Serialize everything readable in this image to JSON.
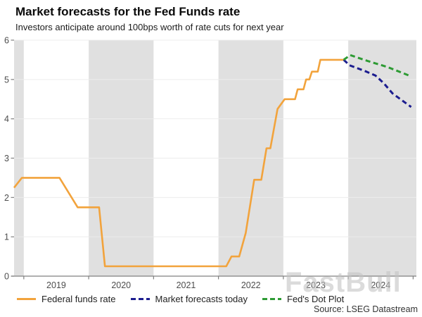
{
  "header": {
    "title": "Market forecasts for the Fed Funds rate",
    "subtitle": "Investors anticipate around 100bps worth of rate cuts for next year"
  },
  "watermark": {
    "text": "FastBull"
  },
  "colors": {
    "band": "#e0e0e0",
    "gridline": "#ededed",
    "axis": "#808080",
    "tick_label": "#4d4d4d",
    "orange": "#F2A33C",
    "navy": "#1C1D8F",
    "green": "#2E9B34"
  },
  "chart_data": {
    "type": "line",
    "title": "Market forecasts for the Fed Funds rate",
    "subtitle": "Investors anticipate around 100bps worth of rate cuts for next year",
    "source": "Source: LSEG Datastream",
    "xlabel": "",
    "ylabel": "",
    "x_axis": {
      "range": [
        2018.85,
        2025.05
      ],
      "tick_labels": [
        "2019",
        "2020",
        "2021",
        "2022",
        "2023",
        "2024"
      ],
      "tick_label_positions": [
        2019.5,
        2020.5,
        2021.5,
        2022.5,
        2023.5,
        2024.5
      ],
      "boundary_ticks": [
        2019,
        2020,
        2021,
        2022,
        2023,
        2024,
        2025
      ]
    },
    "y_axis": {
      "range": [
        0,
        6
      ],
      "ticks": [
        0,
        1,
        2,
        3,
        4,
        5,
        6
      ]
    },
    "shaded_year_bands": [
      [
        2018.85,
        2019
      ],
      [
        2020,
        2021
      ],
      [
        2022,
        2023
      ],
      [
        2024,
        2025.05
      ]
    ],
    "grid": true,
    "legend_position": "bottom",
    "series": [
      {
        "name": "Federal funds rate",
        "style": "solid",
        "color": "#F2A33C",
        "points": [
          [
            2018.85,
            2.25
          ],
          [
            2018.97,
            2.5
          ],
          [
            2019.55,
            2.5
          ],
          [
            2019.83,
            1.75
          ],
          [
            2020.16,
            1.75
          ],
          [
            2020.25,
            0.25
          ],
          [
            2022.12,
            0.25
          ],
          [
            2022.2,
            0.5
          ],
          [
            2022.32,
            0.5
          ],
          [
            2022.42,
            1.1
          ],
          [
            2022.55,
            2.45
          ],
          [
            2022.66,
            2.45
          ],
          [
            2022.74,
            3.25
          ],
          [
            2022.8,
            3.25
          ],
          [
            2022.91,
            4.25
          ],
          [
            2023.02,
            4.5
          ],
          [
            2023.18,
            4.5
          ],
          [
            2023.22,
            4.75
          ],
          [
            2023.31,
            4.75
          ],
          [
            2023.35,
            5.0
          ],
          [
            2023.4,
            5.0
          ],
          [
            2023.44,
            5.2
          ],
          [
            2023.53,
            5.2
          ],
          [
            2023.57,
            5.5
          ],
          [
            2023.93,
            5.5
          ]
        ]
      },
      {
        "name": "Market forecasts today",
        "style": "dashed",
        "color": "#1C1D8F",
        "points": [
          [
            2023.93,
            5.5
          ],
          [
            2024.02,
            5.36
          ],
          [
            2024.12,
            5.3
          ],
          [
            2024.28,
            5.2
          ],
          [
            2024.42,
            5.1
          ],
          [
            2024.55,
            4.9
          ],
          [
            2024.68,
            4.65
          ],
          [
            2024.82,
            4.48
          ],
          [
            2024.97,
            4.3
          ]
        ]
      },
      {
        "name": "Fed's Dot Plot",
        "style": "dashed",
        "color": "#2E9B34",
        "points": [
          [
            2023.93,
            5.5
          ],
          [
            2024.03,
            5.62
          ],
          [
            2024.3,
            5.47
          ],
          [
            2024.6,
            5.32
          ],
          [
            2024.97,
            5.08
          ]
        ]
      }
    ]
  }
}
